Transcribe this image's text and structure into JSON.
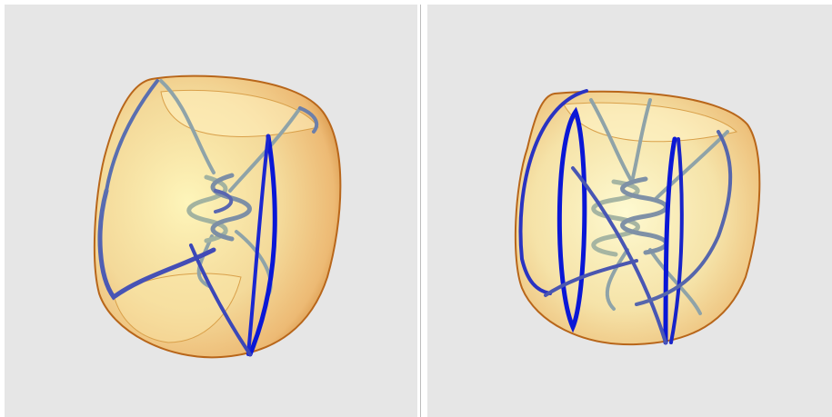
{
  "panels": [
    {
      "id": "left",
      "twist_turns": 3
    },
    {
      "id": "right",
      "twist_turns": 5
    }
  ],
  "colors": {
    "background": "#e6e6e6",
    "surface_light": "#fff6b8",
    "surface_mid": "#f3c46a",
    "surface_edge": "#c8771e",
    "curve_front": "#0a17d6",
    "curve_back": "#8fa3a8"
  }
}
